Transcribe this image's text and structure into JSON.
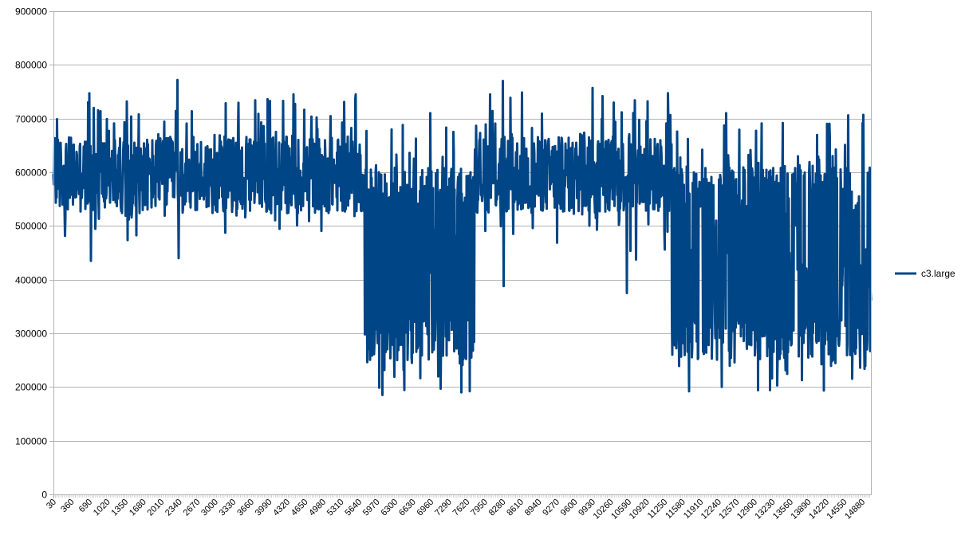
{
  "chart_data": {
    "type": "line",
    "title": "",
    "xlabel": "",
    "ylabel": "",
    "ylim": [
      0,
      900000
    ],
    "yticks": [
      0,
      100000,
      200000,
      300000,
      400000,
      500000,
      600000,
      700000,
      800000,
      900000
    ],
    "ytick_labels": [
      "0",
      "100000",
      "200000",
      "300000",
      "400000",
      "500000",
      "600000",
      "700000",
      "800000",
      "900000"
    ],
    "x_range": [
      30,
      15040
    ],
    "x_step": 10,
    "xtick_labels": [
      "30",
      "360",
      "690",
      "1020",
      "1350",
      "1680",
      "2010",
      "2340",
      "2670",
      "3000",
      "3330",
      "3660",
      "3990",
      "4320",
      "4650",
      "4980",
      "5310",
      "5640",
      "5970",
      "6300",
      "6630",
      "6960",
      "7290",
      "7620",
      "7950",
      "8280",
      "8610",
      "8940",
      "9270",
      "9600",
      "9930",
      "10260",
      "10590",
      "10920",
      "11250",
      "11580",
      "11910",
      "12240",
      "12570",
      "12900",
      "13230",
      "13560",
      "13890",
      "14220",
      "14550",
      "14880"
    ],
    "grid": {
      "horizontal": true,
      "vertical": false,
      "color": "#b3b3b3"
    },
    "legend": {
      "position": "right",
      "entries": [
        "c3.large"
      ]
    },
    "series": [
      {
        "name": "c3.large",
        "color": "#004586",
        "line_width": 3,
        "segments": [
          {
            "x_start": 30,
            "x_end": 5720,
            "regime": "normal",
            "typical_low": 530000,
            "typical_high": 660000,
            "max": 772000,
            "min": 435000
          },
          {
            "x_start": 5720,
            "x_end": 7760,
            "regime": "low",
            "typical_low": 230000,
            "typical_high": 610000,
            "max": 710000,
            "min": 185000
          },
          {
            "x_start": 7760,
            "x_end": 11380,
            "regime": "normal",
            "typical_low": 530000,
            "typical_high": 660000,
            "max": 793000,
            "min": 375000
          },
          {
            "x_start": 11380,
            "x_end": 15040,
            "regime": "low",
            "typical_low": 230000,
            "typical_high": 620000,
            "max": 710000,
            "min": 192000
          }
        ],
        "notable_points": [
          {
            "x": 690,
            "y": 747000
          },
          {
            "x": 720,
            "y": 435000
          },
          {
            "x": 2310,
            "y": 772000
          },
          {
            "x": 2330,
            "y": 440000
          },
          {
            "x": 3960,
            "y": 736000
          },
          {
            "x": 4440,
            "y": 745000
          },
          {
            "x": 5580,
            "y": 745000
          },
          {
            "x": 6070,
            "y": 185000
          },
          {
            "x": 6950,
            "y": 710000
          },
          {
            "x": 7520,
            "y": 190000
          },
          {
            "x": 8050,
            "y": 745000
          },
          {
            "x": 8280,
            "y": 770000
          },
          {
            "x": 8300,
            "y": 388000
          },
          {
            "x": 9930,
            "y": 757000
          },
          {
            "x": 10560,
            "y": 793000
          },
          {
            "x": 10560,
            "y": 375000
          },
          {
            "x": 10940,
            "y": 732000
          },
          {
            "x": 11700,
            "y": 192000
          },
          {
            "x": 12380,
            "y": 710000
          },
          {
            "x": 14620,
            "y": 706000
          },
          {
            "x": 14900,
            "y": 707000
          }
        ]
      }
    ]
  }
}
